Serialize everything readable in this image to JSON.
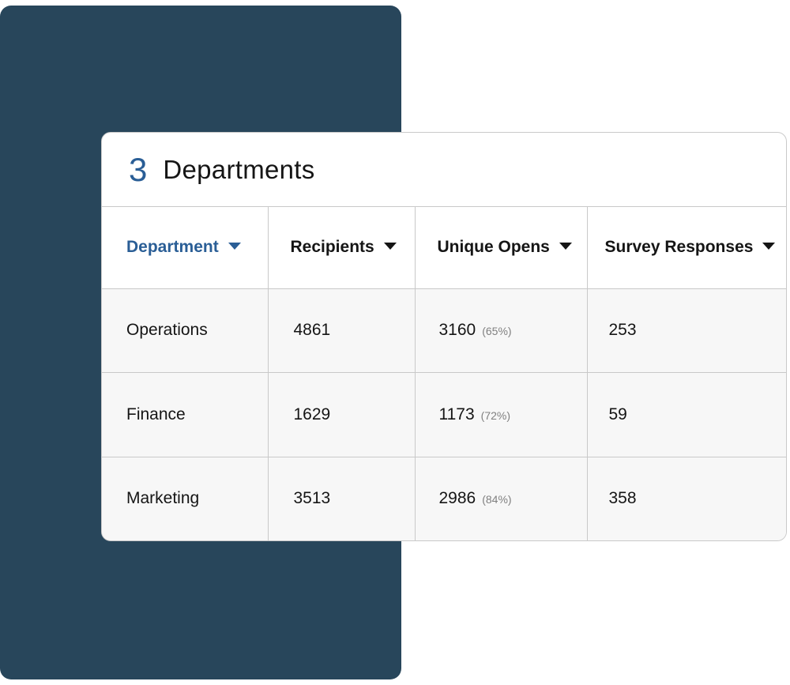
{
  "header": {
    "count": "3",
    "title": "Departments"
  },
  "columns": [
    {
      "label": "Department"
    },
    {
      "label": "Recipients"
    },
    {
      "label": "Unique Opens"
    },
    {
      "label": "Survey Responses"
    }
  ],
  "rows": [
    {
      "department": "Operations",
      "recipients": "4861",
      "opens": "3160",
      "opens_pct": "(65%)",
      "responses": "253"
    },
    {
      "department": "Finance",
      "recipients": "1629",
      "opens": "1173",
      "opens_pct": "(72%)",
      "responses": "59"
    },
    {
      "department": "Marketing",
      "recipients": "3513",
      "opens": "2986",
      "opens_pct": "(84%)",
      "responses": "358"
    }
  ],
  "colors": {
    "accent": "#2a5e96",
    "backdrop": "#28465b"
  },
  "icons": {
    "sort": "caret-down-icon"
  }
}
